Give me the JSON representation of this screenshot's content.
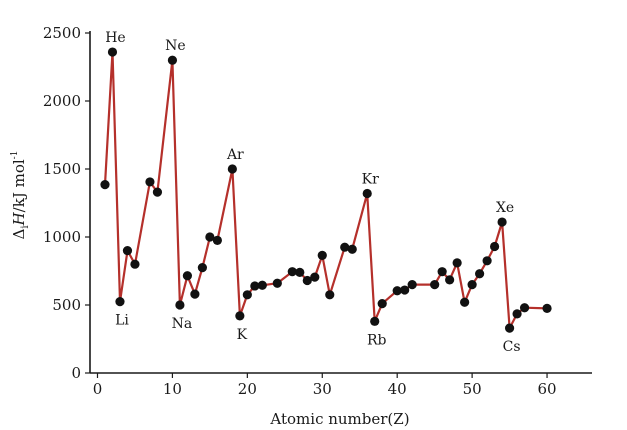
{
  "chart_data": {
    "type": "line",
    "title": "",
    "xlabel": "Atomic number(Z)",
    "ylabel": "ΔiH/kJ mol⁻¹",
    "ylabel_parts": {
      "delta": "Δ",
      "sub": "i",
      "H": "H",
      "unit": "/kJ mol",
      "sup": "-1"
    },
    "xlim": [
      -1,
      66
    ],
    "ylim": [
      0,
      2500
    ],
    "x_ticks": [
      0,
      10,
      20,
      30,
      40,
      50,
      60
    ],
    "y_ticks": [
      0,
      500,
      1000,
      1500,
      2000,
      2500
    ],
    "grid": false,
    "line_color": "#b5302b",
    "marker_color": "#111111",
    "series": [
      {
        "x": [
          1,
          2,
          3,
          4,
          5,
          7,
          8,
          10,
          11,
          12,
          13,
          14,
          15,
          16,
          18,
          19,
          20,
          21,
          22,
          24,
          26,
          27,
          28,
          29,
          30,
          31,
          33,
          34,
          36,
          37,
          38,
          40,
          41,
          42,
          45,
          46,
          47,
          48,
          49,
          50,
          51,
          52,
          53,
          54,
          55,
          56,
          57,
          60
        ],
        "y": [
          1385,
          2360,
          525,
          900,
          800,
          1405,
          1330,
          2300,
          500,
          715,
          580,
          775,
          1000,
          975,
          1500,
          420,
          575,
          640,
          645,
          660,
          745,
          740,
          680,
          705,
          865,
          575,
          925,
          910,
          1320,
          380,
          510,
          605,
          610,
          650,
          650,
          745,
          685,
          810,
          520,
          650,
          730,
          825,
          930,
          1110,
          330,
          435,
          480,
          475
        ]
      }
    ],
    "annotations": [
      {
        "label": "He",
        "x": 2,
        "y": 2360,
        "pos": "above"
      },
      {
        "label": "Ne",
        "x": 10,
        "y": 2300,
        "pos": "above"
      },
      {
        "label": "Ar",
        "x": 18,
        "y": 1500,
        "pos": "above"
      },
      {
        "label": "Kr",
        "x": 36,
        "y": 1320,
        "pos": "above"
      },
      {
        "label": "Xe",
        "x": 54,
        "y": 1110,
        "pos": "above"
      },
      {
        "label": "Li",
        "x": 3,
        "y": 525,
        "pos": "below"
      },
      {
        "label": "Na",
        "x": 11,
        "y": 500,
        "pos": "below"
      },
      {
        "label": "K",
        "x": 19,
        "y": 420,
        "pos": "below"
      },
      {
        "label": "Rb",
        "x": 37,
        "y": 380,
        "pos": "below"
      },
      {
        "label": "Cs",
        "x": 55,
        "y": 330,
        "pos": "below"
      }
    ]
  }
}
